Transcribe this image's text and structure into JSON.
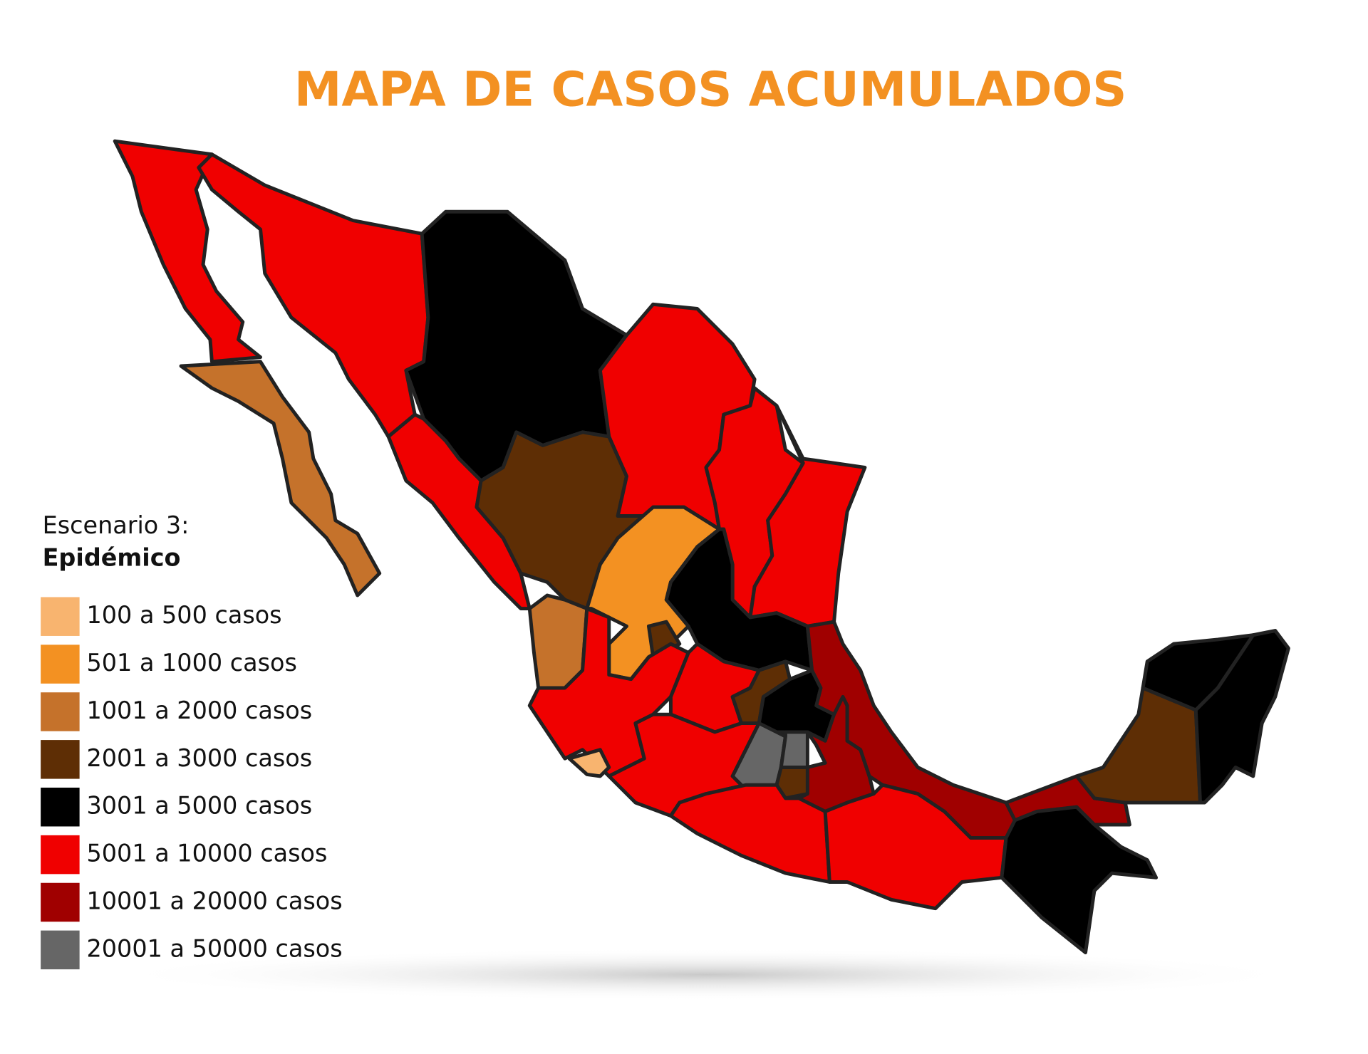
{
  "title": "MAPA DE CASOS ACUMULADOS",
  "legend": {
    "heading": "Escenario 3:",
    "subheading": "Epidémico",
    "items": [
      {
        "label": "100 a 500 casos",
        "color": "#f8b46f"
      },
      {
        "label": "501 a 1000 casos",
        "color": "#f39122"
      },
      {
        "label": "1001 a 2000 casos",
        "color": "#c5722b"
      },
      {
        "label": "2001 a 3000 casos",
        "color": "#5e2e05"
      },
      {
        "label": "3001 a 5000 casos",
        "color": "#000000"
      },
      {
        "label": "5001 a 10000 casos",
        "color": "#f00000"
      },
      {
        "label": "10001 a 20000 casos",
        "color": "#a00000"
      },
      {
        "label": "20001 a 50000 casos",
        "color": "#666666"
      }
    ]
  }
}
